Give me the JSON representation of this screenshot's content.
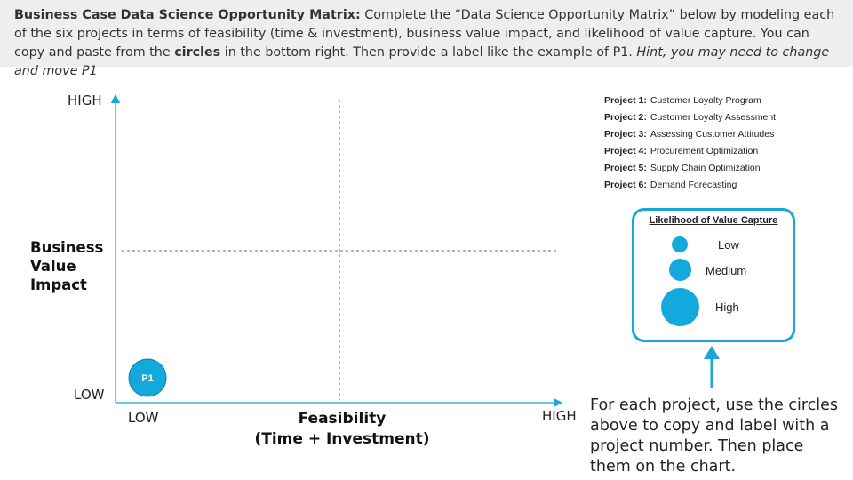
{
  "banner": {
    "title": "Business Case Data Science Opportunity Matrix:",
    "text_before_circles": " Complete the “Data Science Opportunity Matrix” below by modeling each of the six projects in terms of feasibility (time & investment), business value impact, and likelihood of value capture. You can copy and paste from the ",
    "circles_word": "circles",
    "text_after_circles": " in the bottom right. Then provide a label like the example of P1. ",
    "hint": "Hint, you may need to change and move P1"
  },
  "matrix": {
    "y_high": "HIGH",
    "y_low": "LOW",
    "x_low": "LOW",
    "x_high": "HIGH",
    "y_axis_title": [
      "Business",
      "Value",
      "Impact"
    ],
    "x_axis_title": [
      "Feasibility",
      "(Time + Investment)"
    ],
    "marker": {
      "label": "P1",
      "feasibility": "low",
      "impact": "low"
    },
    "colors": {
      "axis": "#1aa7d9",
      "marker": "#14a9dd",
      "gridline": "#666666"
    }
  },
  "projects": [
    {
      "num": "Project 1:",
      "name": "Customer Loyalty Program"
    },
    {
      "num": "Project 2:",
      "name": "Customer Loyalty Assessment"
    },
    {
      "num": "Project 3:",
      "name": "Assessing Customer Attitudes"
    },
    {
      "num": "Project 4:",
      "name": "Procurement Optimization"
    },
    {
      "num": "Project 5:",
      "name": "Supply Chain Optimization"
    },
    {
      "num": "Project 6:",
      "name": "Demand Forecasting"
    }
  ],
  "legend": {
    "title": "Likelihood of Value Capture",
    "low": "Low",
    "medium": "Medium",
    "high": "High"
  },
  "instruction": "For each project, use the circles above to copy and label with a project number. Then place them on the chart."
}
